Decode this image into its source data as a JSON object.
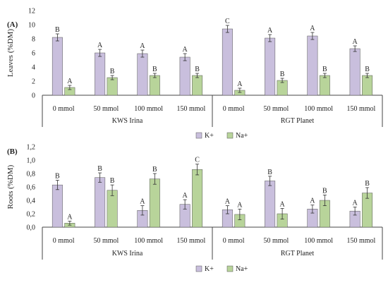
{
  "colors": {
    "k": "#c9bfdd",
    "na": "#b8d49a",
    "bar_stroke": "#555555",
    "axis": "#444444",
    "grid": "#dddddd"
  },
  "chart_data": [
    {
      "panel_label": "(A)",
      "type": "bar",
      "ylabel": "Leaves (%DM)",
      "ylim": [
        0,
        12
      ],
      "yticks": [
        0,
        2,
        4,
        6,
        8,
        10,
        12
      ],
      "ytick_labels": [
        "0",
        "2",
        "4",
        "6",
        "8",
        "10",
        "12"
      ],
      "groups": [
        {
          "name": "KWS Irina",
          "categories": [
            "0 mmol",
            "50 mmol",
            "100 mmol",
            "150 mmol"
          ]
        },
        {
          "name": "RGT Planet",
          "categories": [
            "0 mmol",
            "50 mmol",
            "100 mmol",
            "150 mmol"
          ]
        }
      ],
      "series": [
        {
          "name": "K+",
          "color_key": "k",
          "values": [
            8.2,
            6.0,
            5.9,
            5.4,
            9.4,
            8.1,
            8.4,
            6.6
          ],
          "errors": [
            0.5,
            0.5,
            0.5,
            0.5,
            0.5,
            0.5,
            0.5,
            0.4
          ],
          "letters": [
            "B",
            "A",
            "A",
            "A",
            "C",
            "A",
            "A",
            "A"
          ]
        },
        {
          "name": "Na+",
          "color_key": "na",
          "values": [
            1.1,
            2.5,
            2.8,
            2.8,
            0.7,
            2.1,
            2.8,
            2.8
          ],
          "errors": [
            0.3,
            0.3,
            0.3,
            0.3,
            0.3,
            0.3,
            0.3,
            0.3
          ],
          "letters": [
            "A",
            "B",
            "B",
            "B",
            "A",
            "B",
            "B",
            "B"
          ]
        }
      ],
      "legend": [
        "K+",
        "Na+"
      ],
      "legend_position": "bottom"
    },
    {
      "panel_label": "(B)",
      "type": "bar",
      "ylabel": "Roots (%DM)",
      "ylim": [
        0,
        1.2
      ],
      "yticks": [
        0,
        0.2,
        0.4,
        0.6,
        0.8,
        1.0,
        1.2
      ],
      "ytick_labels": [
        "0,0",
        "0,2",
        "0,4",
        "0,6",
        "0,8",
        "1,0",
        "1,2"
      ],
      "groups": [
        {
          "name": "KWS Irina",
          "categories": [
            "0 mmol",
            "50 mmol",
            "100 mmol",
            "150 mmol"
          ]
        },
        {
          "name": "RGT Planet",
          "categories": [
            "0 mmol",
            "50 mmol",
            "100 mmol",
            "150 mmol"
          ]
        }
      ],
      "series": [
        {
          "name": "K+",
          "color_key": "k",
          "values": [
            0.63,
            0.74,
            0.25,
            0.34,
            0.26,
            0.69,
            0.27,
            0.24
          ],
          "errors": [
            0.07,
            0.07,
            0.07,
            0.07,
            0.06,
            0.07,
            0.06,
            0.06
          ],
          "letters": [
            "B",
            "B",
            "A",
            "A",
            "A",
            "B",
            "A",
            "A"
          ]
        },
        {
          "name": "Na+",
          "color_key": "na",
          "values": [
            0.06,
            0.55,
            0.72,
            0.86,
            0.19,
            0.2,
            0.4,
            0.51
          ],
          "errors": [
            0.03,
            0.08,
            0.08,
            0.08,
            0.08,
            0.08,
            0.08,
            0.08
          ],
          "letters": [
            "A",
            "B",
            "B",
            "C",
            "A",
            "A",
            "B",
            "B"
          ]
        }
      ],
      "legend": [
        "K+",
        "Na+"
      ],
      "legend_position": "bottom"
    }
  ]
}
